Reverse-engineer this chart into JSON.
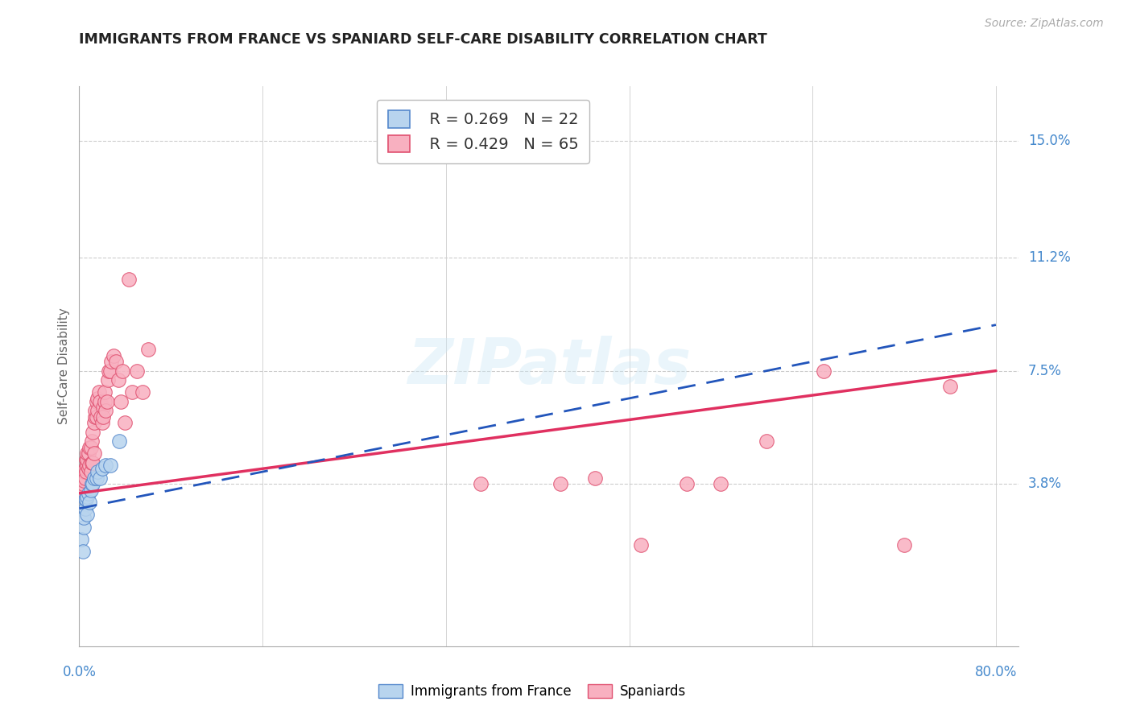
{
  "title": "IMMIGRANTS FROM FRANCE VS SPANIARD SELF-CARE DISABILITY CORRELATION CHART",
  "source": "Source: ZipAtlas.com",
  "ylabel": "Self-Care Disability",
  "yticks": [
    0.038,
    0.075,
    0.112,
    0.15
  ],
  "ytick_labels": [
    "3.8%",
    "7.5%",
    "11.2%",
    "15.0%"
  ],
  "xticks": [
    0.0,
    0.16,
    0.32,
    0.48,
    0.64,
    0.8
  ],
  "xlim": [
    0.0,
    0.82
  ],
  "ylim": [
    -0.015,
    0.168
  ],
  "watermark_text": "ZIPatlas",
  "france_color": "#b8d4ee",
  "france_edge": "#5588cc",
  "spaniard_color": "#f8b0c0",
  "spaniard_edge": "#e05070",
  "trendline_france_color": "#2255bb",
  "trendline_spain_color": "#e03060",
  "france_R": "0.269",
  "france_N": "22",
  "spain_R": "0.429",
  "spain_N": "65",
  "france_x": [
    0.002,
    0.003,
    0.004,
    0.004,
    0.005,
    0.005,
    0.006,
    0.007,
    0.007,
    0.008,
    0.009,
    0.01,
    0.011,
    0.012,
    0.013,
    0.015,
    0.016,
    0.018,
    0.02,
    0.023,
    0.027,
    0.035
  ],
  "france_y": [
    0.02,
    0.016,
    0.024,
    0.027,
    0.03,
    0.033,
    0.033,
    0.028,
    0.034,
    0.035,
    0.032,
    0.036,
    0.038,
    0.038,
    0.04,
    0.04,
    0.042,
    0.04,
    0.043,
    0.044,
    0.044,
    0.052
  ],
  "spain_x": [
    0.002,
    0.003,
    0.003,
    0.004,
    0.004,
    0.005,
    0.005,
    0.006,
    0.006,
    0.007,
    0.007,
    0.007,
    0.008,
    0.008,
    0.009,
    0.009,
    0.01,
    0.01,
    0.011,
    0.011,
    0.012,
    0.012,
    0.013,
    0.013,
    0.014,
    0.014,
    0.015,
    0.015,
    0.016,
    0.016,
    0.017,
    0.018,
    0.019,
    0.02,
    0.021,
    0.021,
    0.022,
    0.022,
    0.023,
    0.024,
    0.025,
    0.026,
    0.027,
    0.028,
    0.03,
    0.032,
    0.034,
    0.036,
    0.038,
    0.04,
    0.043,
    0.046,
    0.05,
    0.055,
    0.06,
    0.35,
    0.42,
    0.45,
    0.49,
    0.53,
    0.56,
    0.6,
    0.65,
    0.72,
    0.76
  ],
  "spain_y": [
    0.036,
    0.038,
    0.04,
    0.039,
    0.042,
    0.04,
    0.043,
    0.042,
    0.046,
    0.044,
    0.046,
    0.048,
    0.043,
    0.048,
    0.044,
    0.05,
    0.042,
    0.05,
    0.045,
    0.052,
    0.045,
    0.055,
    0.048,
    0.058,
    0.06,
    0.062,
    0.065,
    0.06,
    0.062,
    0.066,
    0.068,
    0.065,
    0.06,
    0.058,
    0.063,
    0.06,
    0.065,
    0.068,
    0.062,
    0.065,
    0.072,
    0.075,
    0.075,
    0.078,
    0.08,
    0.078,
    0.072,
    0.065,
    0.075,
    0.058,
    0.105,
    0.068,
    0.075,
    0.068,
    0.082,
    0.038,
    0.038,
    0.04,
    0.018,
    0.038,
    0.038,
    0.052,
    0.075,
    0.018,
    0.07
  ],
  "trendline_france_x0": 0.0,
  "trendline_france_x1": 0.8,
  "trendline_france_y0": 0.03,
  "trendline_france_y1": 0.09,
  "trendline_spain_x0": 0.0,
  "trendline_spain_x1": 0.8,
  "trendline_spain_y0": 0.035,
  "trendline_spain_y1": 0.075
}
